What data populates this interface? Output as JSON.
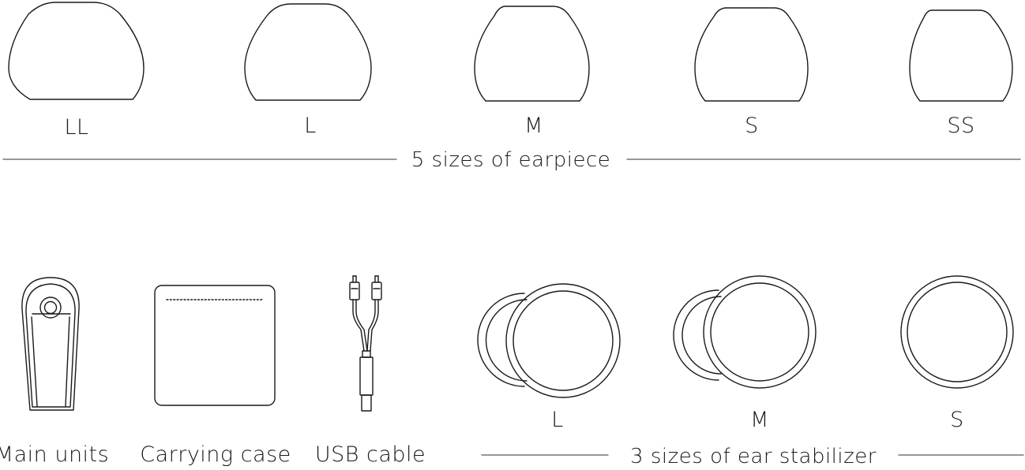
{
  "earpieces": {
    "sizes": [
      "LL",
      "L",
      "M",
      "S",
      "SS"
    ],
    "caption": "5 sizes of earpiece"
  },
  "accessories": {
    "main_units": "Main units",
    "carrying_case": "Carrying case",
    "usb_cable": "USB cable"
  },
  "stabilizers": {
    "sizes": [
      "L",
      "M",
      "S"
    ],
    "caption": "3 sizes of  ear stabilizer"
  }
}
